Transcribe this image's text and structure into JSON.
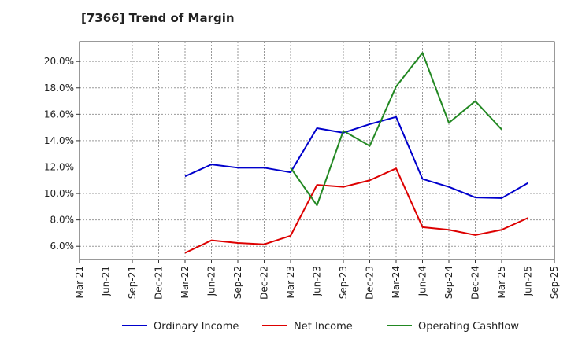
{
  "chart_data": {
    "type": "line",
    "title": "[7366]  Trend of Margin",
    "xlabel": "",
    "ylabel": "",
    "categories": [
      "Mar-21",
      "Jun-21",
      "Sep-21",
      "Dec-21",
      "Mar-22",
      "Jun-22",
      "Sep-22",
      "Dec-22",
      "Mar-23",
      "Jun-23",
      "Sep-23",
      "Dec-23",
      "Mar-24",
      "Jun-24",
      "Sep-24",
      "Dec-24",
      "Mar-25",
      "Jun-25",
      "Sep-25"
    ],
    "ylim": [
      5.0,
      21.5
    ],
    "yticks": [
      6.0,
      8.0,
      10.0,
      12.0,
      14.0,
      16.0,
      18.0,
      20.0
    ],
    "ytick_labels": [
      "6.0%",
      "8.0%",
      "10.0%",
      "12.0%",
      "14.0%",
      "16.0%",
      "18.0%",
      "20.0%"
    ],
    "grid": true,
    "legend_position": "bottom",
    "series": [
      {
        "name": "Ordinary Income",
        "color": "#0000cc",
        "values": [
          null,
          null,
          null,
          null,
          11.3,
          12.2,
          11.95,
          11.95,
          11.6,
          14.95,
          14.6,
          15.25,
          15.8,
          11.1,
          10.5,
          9.7,
          9.65,
          10.8,
          null
        ]
      },
      {
        "name": "Net Income",
        "color": "#dd0000",
        "values": [
          null,
          null,
          null,
          null,
          5.5,
          6.45,
          6.25,
          6.15,
          6.8,
          10.65,
          10.5,
          11.0,
          11.9,
          7.45,
          7.25,
          6.85,
          7.25,
          8.15,
          null
        ]
      },
      {
        "name": "Operating Cashflow",
        "color": "#228822",
        "values": [
          null,
          null,
          null,
          null,
          null,
          null,
          null,
          null,
          11.95,
          9.1,
          14.75,
          13.6,
          18.1,
          20.65,
          15.35,
          17.0,
          14.85,
          null,
          null
        ]
      }
    ]
  }
}
